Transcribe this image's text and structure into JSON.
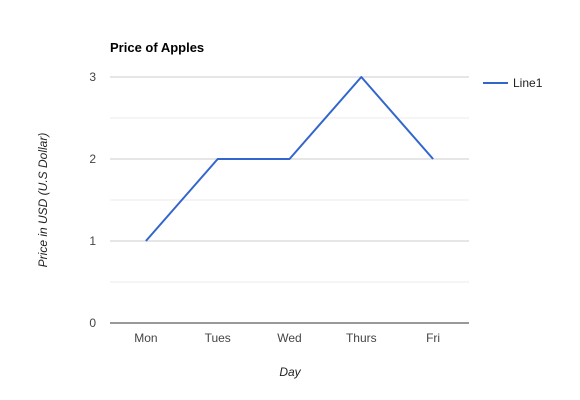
{
  "chart_data": {
    "type": "line",
    "title": "Price of Apples",
    "xlabel": "Day",
    "ylabel": "Price in USD (U.S Dollar)",
    "categories": [
      "Mon",
      "Tues",
      "Wed",
      "Thurs",
      "Fri"
    ],
    "series": [
      {
        "name": "Line1",
        "values": [
          1,
          2,
          2,
          3,
          2
        ],
        "color": "#3366cc"
      }
    ],
    "ylim": [
      0,
      3
    ],
    "yticks": [
      0,
      1,
      2,
      3
    ],
    "grid": true,
    "legend": "right",
    "gridline_color": "#cccccc",
    "minor_gridline_color": "#ebebeb",
    "baseline_color": "#333333"
  }
}
